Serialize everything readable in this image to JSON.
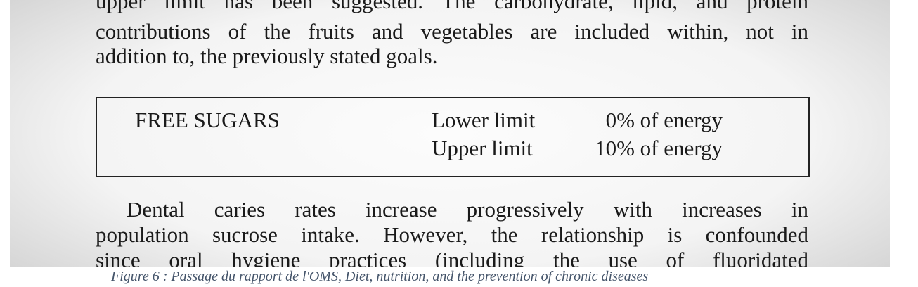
{
  "document": {
    "before": [
      "upper limit has been suggested. The carbohydrate, lipid, and protein",
      "contributions of the fruits and vegetables are included within, not in",
      "addition to, the previously stated goals."
    ],
    "box": {
      "heading": "FREE SUGARS",
      "rows": [
        [
          "Lower limit",
          "0% of energy"
        ],
        [
          "Upper limit",
          "10% of energy"
        ]
      ]
    },
    "after": [
      "Dental caries rates increase progressively with increases in",
      "population sucrose intake. However, the relationship is confounded",
      "since oral hygiene practices (including the use of fluoridated"
    ],
    "caption": "Figure 6 : Passage du rapport de l'OMS, Diet, nutrition, and the prevention of chronic diseases"
  }
}
